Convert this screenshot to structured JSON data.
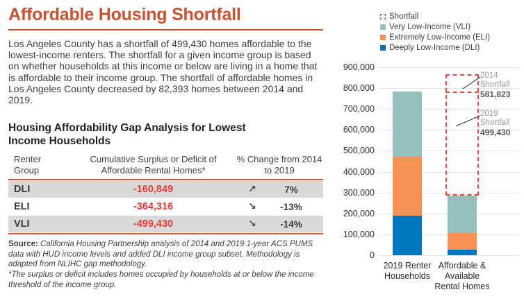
{
  "header": {
    "title": "Affordable Housing Shortfall"
  },
  "intro": {
    "text": "Los Angeles County has a shortfall of 499,430 homes affordable to the lowest-income renters. The shortfall for a given income group is based on whether households at this income or below are living in a home that is affordable to their income group. The shortfall of affordable homes in Los Angeles County decreased by 82,393 homes between 2014 and 2019."
  },
  "table": {
    "title": "Housing Affordability Gap Analysis for Lowest Income Households",
    "headers": [
      "Renter Group",
      "Cumulative Surplus or Deficit of Affordable Rental Homes*",
      "% Change from 2014 to 2019"
    ],
    "rows": [
      {
        "group": "DLI",
        "value": "-160,849",
        "trend": "up",
        "arrow": "↗",
        "change": "7%"
      },
      {
        "group": "ELI",
        "value": "-364,316",
        "trend": "down",
        "arrow": "↘",
        "change": "-13%"
      },
      {
        "group": "VLI",
        "value": "-499,430",
        "trend": "down",
        "arrow": "↘",
        "change": "-14%"
      }
    ]
  },
  "footnotes": {
    "source_label": "Source:",
    "source_text": " California Housing Partnership analysis of 2014 and 2019 1-year ACS PUMS data with HUD income levels and added DLI income group subset. Methodology is adapted from NLIHC gap methodology.",
    "note": "*The surplus or deficit includes homes occupied by households at or below the income threshold of the income group."
  },
  "colors": {
    "accent_orange": "#c75333",
    "rule_orange": "#ce5736",
    "value_red": "#ee3a33",
    "row_gray": "#d9d9d9",
    "bar_teal": "#93c0ba",
    "bar_orange": "#f89155",
    "bar_blue": "#0077bc",
    "shortfall_red": "#eb4842",
    "gridline_gray": "#e6e6e6",
    "annotation_gray": "#97999b",
    "annotation_value_gray": "#58595b"
  },
  "chart_data": {
    "type": "bar",
    "subtype": "stacked",
    "categories": [
      "2019 Renter\nHouseholds",
      "Affordable &\nAvailable\nRental Homes"
    ],
    "series": [
      {
        "name": "Deeply Low-Income (DLI)",
        "key": "dli",
        "color": "#0077bc",
        "values": [
          190000,
          28000
        ]
      },
      {
        "name": "Extremely Low-Income (ELI)",
        "key": "eli",
        "color": "#f89155",
        "values": [
          280000,
          77000
        ]
      },
      {
        "name": "Very Low-Income (VLI)",
        "key": "vli",
        "color": "#93c0ba",
        "values": [
          315000,
          180000
        ]
      }
    ],
    "totals": [
      785000,
      285000
    ],
    "ylim": [
      0,
      900000
    ],
    "ytick_step": 100000,
    "grid": true,
    "legend_position": "top-right",
    "legend": [
      {
        "label": "Shortfall",
        "swatch": "shortfall"
      },
      {
        "label": "Very Low-Income (VLI)",
        "swatch": "vli"
      },
      {
        "label": "Extremely Low-Income (ELI)",
        "swatch": "eli"
      },
      {
        "label": "Deeply Low-Income (DLI)",
        "swatch": "dli"
      }
    ],
    "annotations": [
      {
        "label_lines": [
          "2014",
          "Shortfall"
        ],
        "value_label": "581,823",
        "shortfall_value": 581823
      },
      {
        "label_lines": [
          "2019",
          "Shortfall"
        ],
        "value_label": "499,430",
        "shortfall_value": 499430
      }
    ]
  }
}
